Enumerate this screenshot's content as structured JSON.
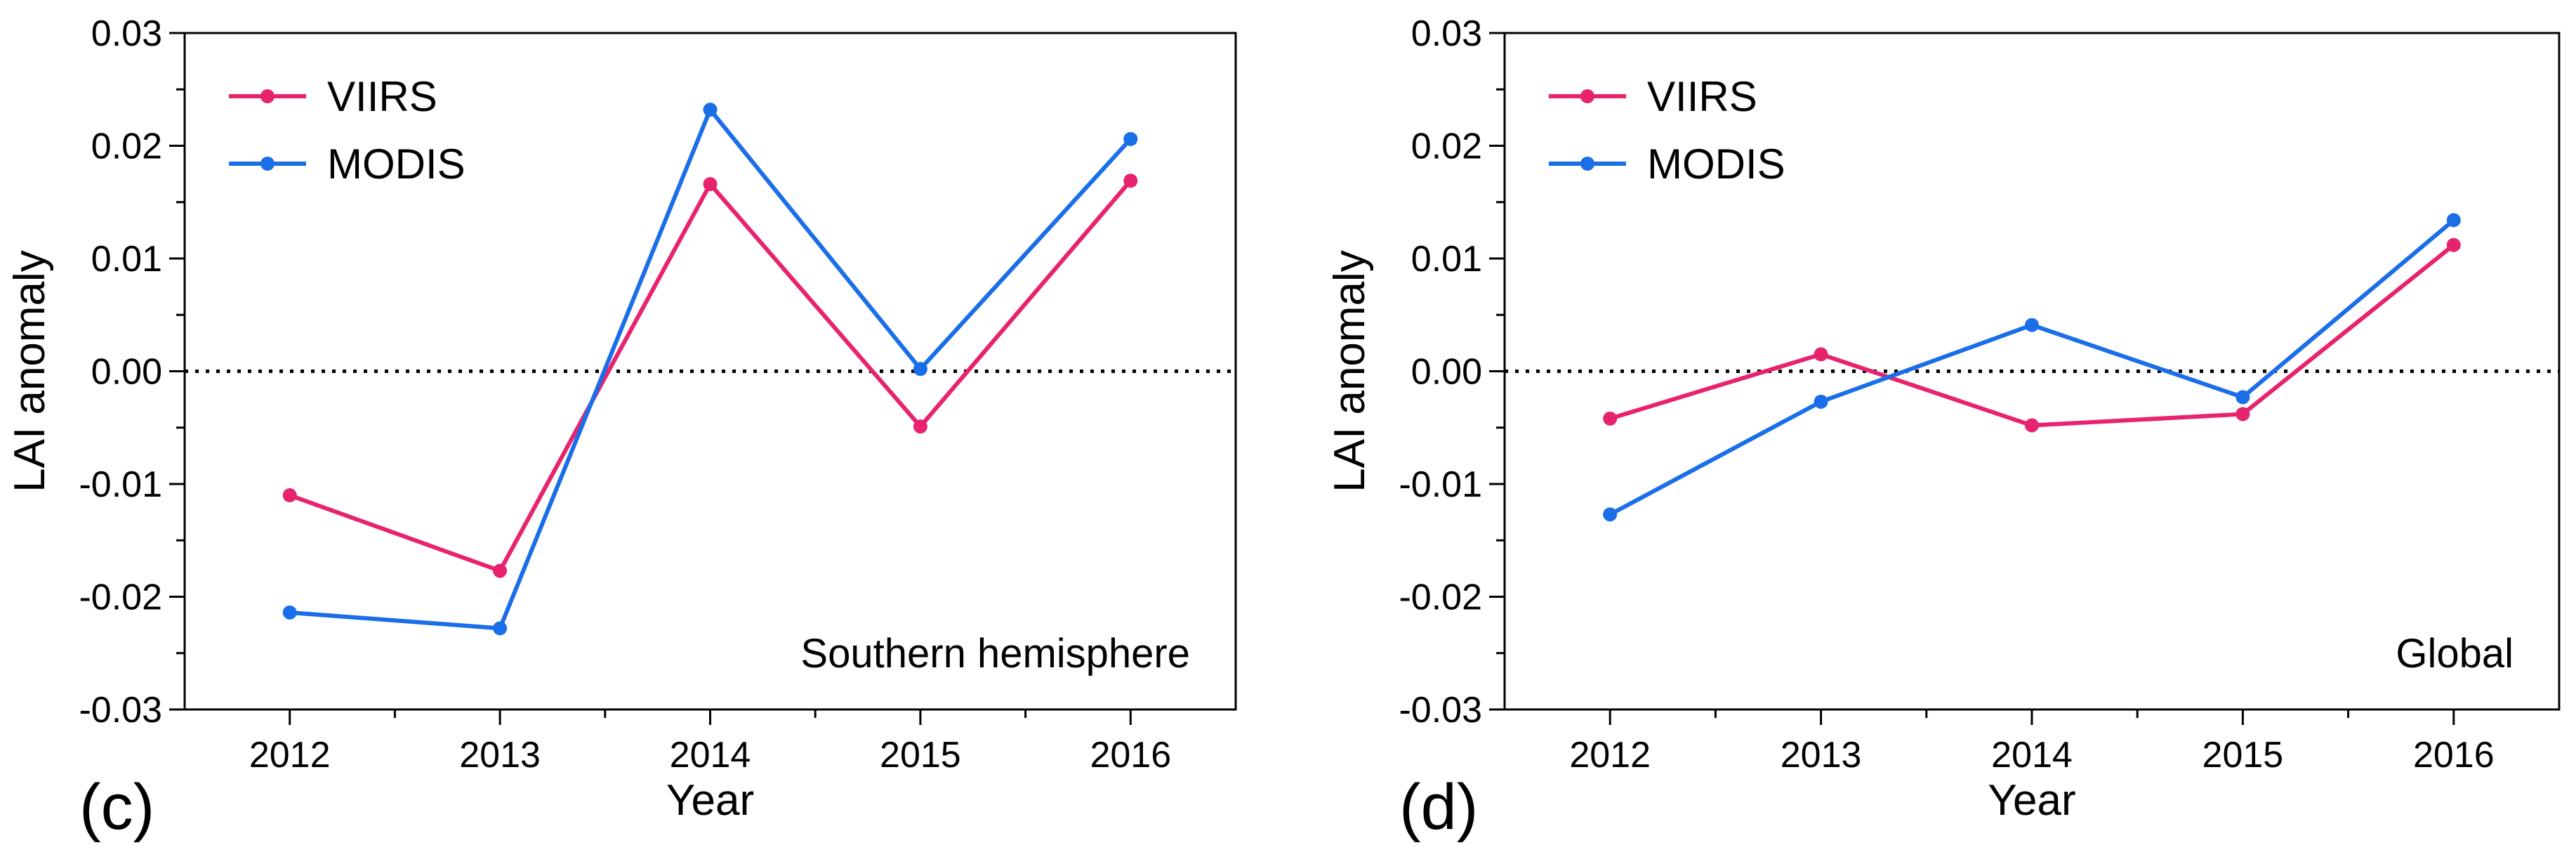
{
  "figure": {
    "colors": {
      "viirs": "#e8236e",
      "modis": "#1a6ee8",
      "axis": "#000000",
      "zero_line": "#000000"
    }
  },
  "chart_data": [
    {
      "type": "line",
      "panel_label": "(c)",
      "annotation": "Southern hemisphere",
      "xlabel": "Year",
      "ylabel": "LAI anomaly",
      "categories": [
        "2012",
        "2013",
        "2014",
        "2015",
        "2016"
      ],
      "ylim": [
        -0.03,
        0.03
      ],
      "yticks": [
        "-0.03",
        "-0.02",
        "-0.01",
        "0.00",
        "0.01",
        "0.02",
        "0.03"
      ],
      "ytick_values": [
        -0.03,
        -0.02,
        -0.01,
        0.0,
        0.01,
        0.02,
        0.03
      ],
      "reference_line": 0.0,
      "legend_position": "top-left",
      "series": [
        {
          "name": "VIIRS",
          "color": "#e8236e",
          "values": [
            -0.011,
            -0.0177,
            0.0166,
            -0.0049,
            0.0169
          ]
        },
        {
          "name": "MODIS",
          "color": "#1a6ee8",
          "values": [
            -0.0214,
            -0.0228,
            0.0232,
            0.0002,
            0.0206
          ]
        }
      ]
    },
    {
      "type": "line",
      "panel_label": "(d)",
      "annotation": "Global",
      "xlabel": "Year",
      "ylabel": "LAI anomaly",
      "categories": [
        "2012",
        "2013",
        "2014",
        "2015",
        "2016"
      ],
      "ylim": [
        -0.03,
        0.03
      ],
      "yticks": [
        "-0.03",
        "-0.02",
        "-0.01",
        "0.00",
        "0.01",
        "0.02",
        "0.03"
      ],
      "ytick_values": [
        -0.03,
        -0.02,
        -0.01,
        0.0,
        0.01,
        0.02,
        0.03
      ],
      "reference_line": 0.0,
      "legend_position": "top-left",
      "series": [
        {
          "name": "VIIRS",
          "color": "#e8236e",
          "values": [
            -0.0042,
            0.0015,
            -0.0048,
            -0.0038,
            0.0112
          ]
        },
        {
          "name": "MODIS",
          "color": "#1a6ee8",
          "values": [
            -0.0127,
            -0.0027,
            0.0041,
            -0.0023,
            0.0134
          ]
        }
      ]
    }
  ]
}
